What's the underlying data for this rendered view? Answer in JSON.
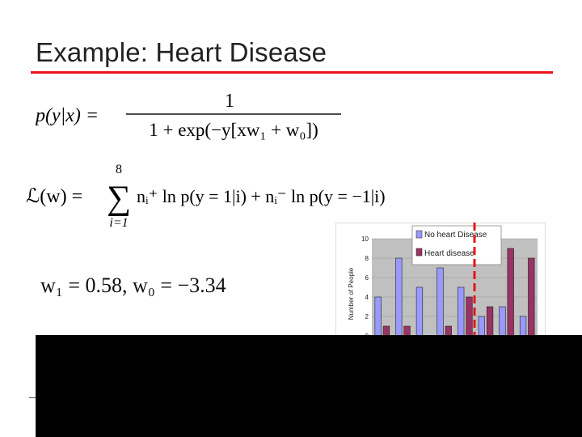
{
  "slide": {
    "title": "Example: Heart Disease",
    "equations": {
      "logistic": {
        "lhs": "p(y|x) =",
        "numerator": "1",
        "denominator": "1 + exp(−y[xw₁ + w₀])"
      },
      "likelihood": {
        "lhs": "ℒ(w) =",
        "sum_top": "8",
        "sum_bottom": "i=1",
        "body": "nᵢ⁺ ln p(y = 1|i) + nᵢ⁻ ln p(y = −1|i)"
      },
      "result": "w₁ = 0.58, w₀ = −3.34"
    }
  },
  "chart_data": {
    "type": "bar",
    "ylabel": "Number of People",
    "ylim": [
      0,
      10
    ],
    "yticks": [
      "0",
      "2",
      "4",
      "6",
      "8",
      "10"
    ],
    "series": [
      {
        "name": "No heart Disease",
        "color": "#9999ff",
        "values": [
          4,
          8,
          5,
          7,
          5,
          2,
          3,
          2
        ]
      },
      {
        "name": "Heart disease",
        "color": "#993366",
        "values": [
          1,
          1,
          0,
          1,
          4,
          3,
          9,
          8
        ]
      }
    ],
    "threshold_line_color": "#e8141b",
    "plot_background": "#c0c0c0"
  },
  "colors": {
    "title_rule": "#e8141b",
    "occluder": "#000000"
  }
}
